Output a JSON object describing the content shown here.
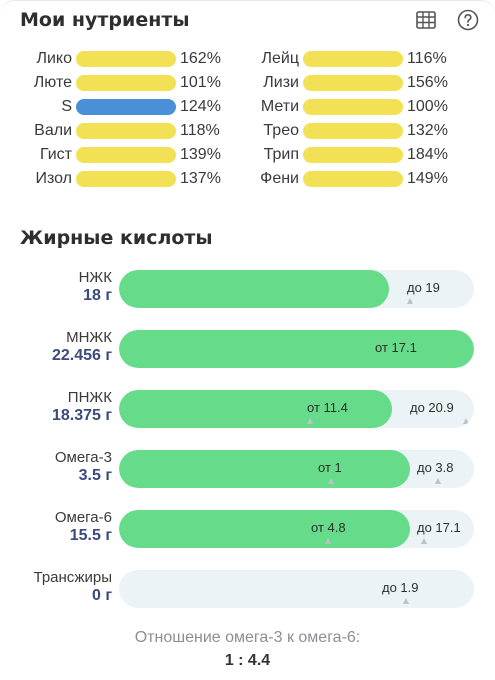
{
  "nutrients": {
    "title": "Мои нутриенты",
    "icons": [
      "table-icon",
      "help-icon"
    ],
    "left": [
      {
        "label": "Лико",
        "pct": "162%",
        "color": "#f2e154"
      },
      {
        "label": "Люте",
        "pct": "101%",
        "color": "#f2e154"
      },
      {
        "label": "S",
        "pct": "124%",
        "color": "#4a90d9"
      },
      {
        "label": "Вали",
        "pct": "118%",
        "color": "#f2e154"
      },
      {
        "label": "Гист",
        "pct": "139%",
        "color": "#f2e154"
      },
      {
        "label": "Изол",
        "pct": "137%",
        "color": "#f2e154"
      }
    ],
    "right": [
      {
        "label": "Лейц",
        "pct": "116%",
        "color": "#f2e154"
      },
      {
        "label": "Лизи",
        "pct": "156%",
        "color": "#f2e154"
      },
      {
        "label": "Мети",
        "pct": "100%",
        "color": "#f2e154"
      },
      {
        "label": "Трео",
        "pct": "132%",
        "color": "#f2e154"
      },
      {
        "label": "Трип",
        "pct": "184%",
        "color": "#f2e154"
      },
      {
        "label": "Фени",
        "pct": "149%",
        "color": "#f2e154"
      }
    ]
  },
  "fats": {
    "title": "Жирные кислоты",
    "rows": [
      {
        "name": "НЖК",
        "value": "18 г",
        "fill": 0.76,
        "markers": [
          {
            "text": "до 19",
            "pos": 0.81,
            "tick": 0.81
          }
        ]
      },
      {
        "name": "МНЖК",
        "value": "22.456 г",
        "fill": 1.0,
        "markers": [
          {
            "text": "от 17.1",
            "pos": 0.72,
            "tick": null
          }
        ]
      },
      {
        "name": "ПНЖК",
        "value": "18.375 г",
        "fill": 0.77,
        "markers": [
          {
            "text": "от 11.4",
            "pos": 0.53,
            "tick": 0.53
          },
          {
            "text": "до 20.9",
            "pos": 0.82,
            "tick": 0.97
          }
        ]
      },
      {
        "name": "Омега-3",
        "value": "3.5 г",
        "fill": 0.82,
        "markers": [
          {
            "text": "от 1",
            "pos": 0.56,
            "tick": 0.59
          },
          {
            "text": "до 3.8",
            "pos": 0.84,
            "tick": 0.89
          }
        ]
      },
      {
        "name": "Омега-6",
        "value": "15.5 г",
        "fill": 0.82,
        "markers": [
          {
            "text": "от 4.8",
            "pos": 0.54,
            "tick": 0.58
          },
          {
            "text": "до 17.1",
            "pos": 0.84,
            "tick": 0.85
          }
        ]
      },
      {
        "name": "Трансжиры",
        "value": "0 г",
        "fill": 0.0,
        "markers": [
          {
            "text": "до 1.9",
            "pos": 0.74,
            "tick": 0.8
          }
        ]
      }
    ]
  },
  "ratio": {
    "label": "Отношение омега-3 к омега-6:",
    "value": "1 : 4.4"
  }
}
